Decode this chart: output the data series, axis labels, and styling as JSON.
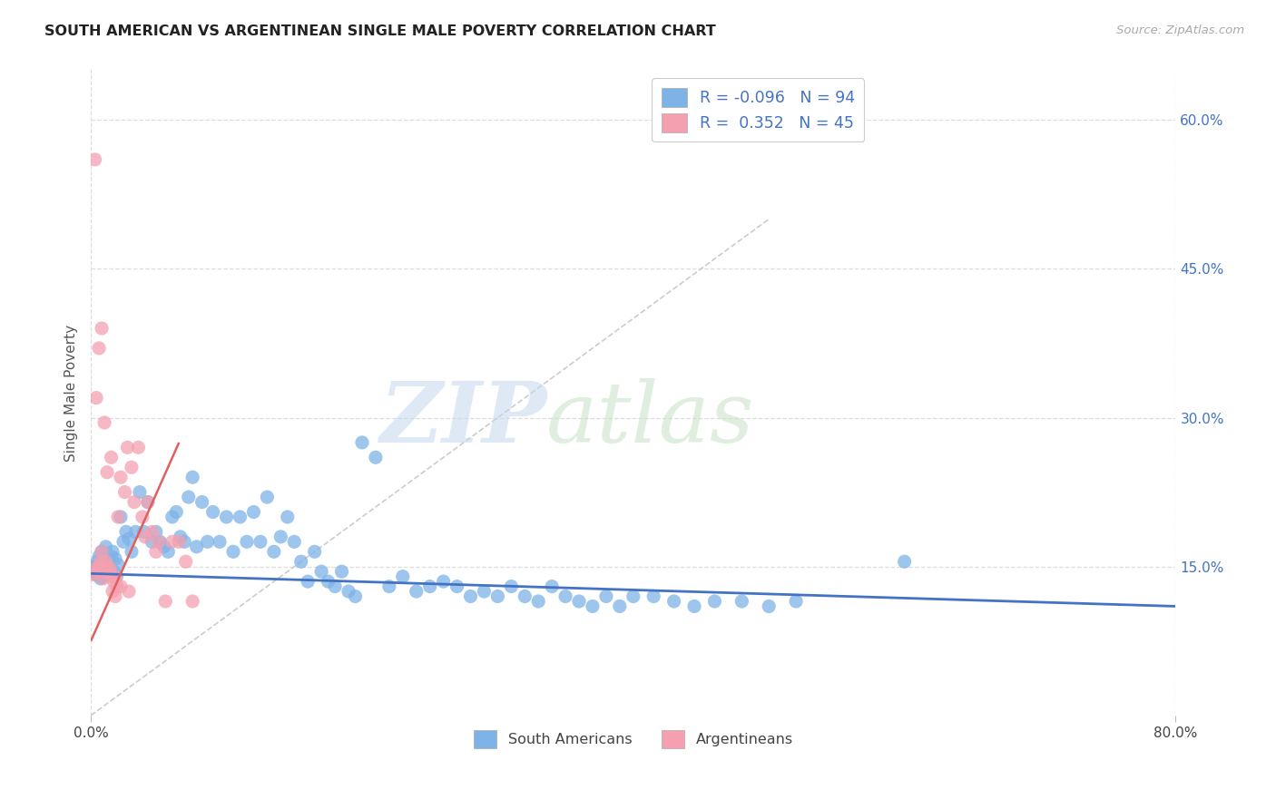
{
  "title": "SOUTH AMERICAN VS ARGENTINEAN SINGLE MALE POVERTY CORRELATION CHART",
  "source": "Source: ZipAtlas.com",
  "ylabel": "Single Male Poverty",
  "ytick_vals": [
    0.6,
    0.45,
    0.3,
    0.15
  ],
  "ytick_labels": [
    "60.0%",
    "45.0%",
    "30.0%",
    "15.0%"
  ],
  "xtick_vals": [
    0.0,
    0.8
  ],
  "xtick_labels": [
    "0.0%",
    "80.0%"
  ],
  "xlim": [
    0.0,
    0.8
  ],
  "ylim": [
    0.0,
    0.65
  ],
  "blue_color": "#7EB3E8",
  "pink_color": "#F4A0B0",
  "blue_label": "South Americans",
  "pink_label": "Argentineans",
  "legend_r_blue": "-0.096",
  "legend_n_blue": "94",
  "legend_r_pink": "0.352",
  "legend_n_pink": "45",
  "blue_trend": [
    0.0,
    0.143,
    0.8,
    0.11
  ],
  "pink_trend": [
    0.0,
    0.075,
    0.065,
    0.275
  ],
  "diag_line": [
    0.0,
    0.0,
    0.5,
    0.5
  ],
  "blue_scatter_x": [
    0.001,
    0.002,
    0.003,
    0.004,
    0.005,
    0.006,
    0.007,
    0.008,
    0.009,
    0.01,
    0.011,
    0.012,
    0.013,
    0.014,
    0.015,
    0.016,
    0.017,
    0.018,
    0.019,
    0.02,
    0.022,
    0.024,
    0.026,
    0.028,
    0.03,
    0.033,
    0.036,
    0.039,
    0.042,
    0.045,
    0.048,
    0.051,
    0.054,
    0.057,
    0.06,
    0.063,
    0.066,
    0.069,
    0.072,
    0.075,
    0.078,
    0.082,
    0.086,
    0.09,
    0.095,
    0.1,
    0.105,
    0.11,
    0.115,
    0.12,
    0.125,
    0.13,
    0.135,
    0.14,
    0.145,
    0.15,
    0.155,
    0.16,
    0.165,
    0.17,
    0.175,
    0.18,
    0.185,
    0.19,
    0.195,
    0.2,
    0.21,
    0.22,
    0.23,
    0.24,
    0.25,
    0.26,
    0.27,
    0.28,
    0.29,
    0.3,
    0.31,
    0.32,
    0.33,
    0.34,
    0.35,
    0.36,
    0.37,
    0.38,
    0.39,
    0.4,
    0.415,
    0.43,
    0.445,
    0.46,
    0.48,
    0.5,
    0.52,
    0.6
  ],
  "blue_scatter_y": [
    0.145,
    0.15,
    0.148,
    0.142,
    0.155,
    0.16,
    0.138,
    0.165,
    0.14,
    0.152,
    0.17,
    0.155,
    0.145,
    0.148,
    0.16,
    0.165,
    0.145,
    0.158,
    0.14,
    0.152,
    0.2,
    0.175,
    0.185,
    0.178,
    0.165,
    0.185,
    0.225,
    0.185,
    0.215,
    0.175,
    0.185,
    0.175,
    0.17,
    0.165,
    0.2,
    0.205,
    0.18,
    0.175,
    0.22,
    0.24,
    0.17,
    0.215,
    0.175,
    0.205,
    0.175,
    0.2,
    0.165,
    0.2,
    0.175,
    0.205,
    0.175,
    0.22,
    0.165,
    0.18,
    0.2,
    0.175,
    0.155,
    0.135,
    0.165,
    0.145,
    0.135,
    0.13,
    0.145,
    0.125,
    0.12,
    0.275,
    0.26,
    0.13,
    0.14,
    0.125,
    0.13,
    0.135,
    0.13,
    0.12,
    0.125,
    0.12,
    0.13,
    0.12,
    0.115,
    0.13,
    0.12,
    0.115,
    0.11,
    0.12,
    0.11,
    0.12,
    0.12,
    0.115,
    0.11,
    0.115,
    0.115,
    0.11,
    0.115,
    0.155
  ],
  "pink_scatter_x": [
    0.002,
    0.003,
    0.004,
    0.005,
    0.006,
    0.007,
    0.008,
    0.009,
    0.01,
    0.011,
    0.012,
    0.013,
    0.014,
    0.015,
    0.016,
    0.017,
    0.018,
    0.019,
    0.02,
    0.022,
    0.025,
    0.027,
    0.03,
    0.032,
    0.035,
    0.038,
    0.04,
    0.042,
    0.045,
    0.048,
    0.05,
    0.055,
    0.06,
    0.065,
    0.07,
    0.075,
    0.004,
    0.006,
    0.008,
    0.01,
    0.012,
    0.015,
    0.018,
    0.022,
    0.028
  ],
  "pink_scatter_y": [
    0.142,
    0.56,
    0.148,
    0.145,
    0.15,
    0.155,
    0.165,
    0.138,
    0.145,
    0.155,
    0.15,
    0.145,
    0.148,
    0.14,
    0.125,
    0.135,
    0.12,
    0.13,
    0.2,
    0.24,
    0.225,
    0.27,
    0.25,
    0.215,
    0.27,
    0.2,
    0.18,
    0.215,
    0.185,
    0.165,
    0.175,
    0.115,
    0.175,
    0.175,
    0.155,
    0.115,
    0.32,
    0.37,
    0.39,
    0.295,
    0.245,
    0.26,
    0.14,
    0.13,
    0.125
  ]
}
